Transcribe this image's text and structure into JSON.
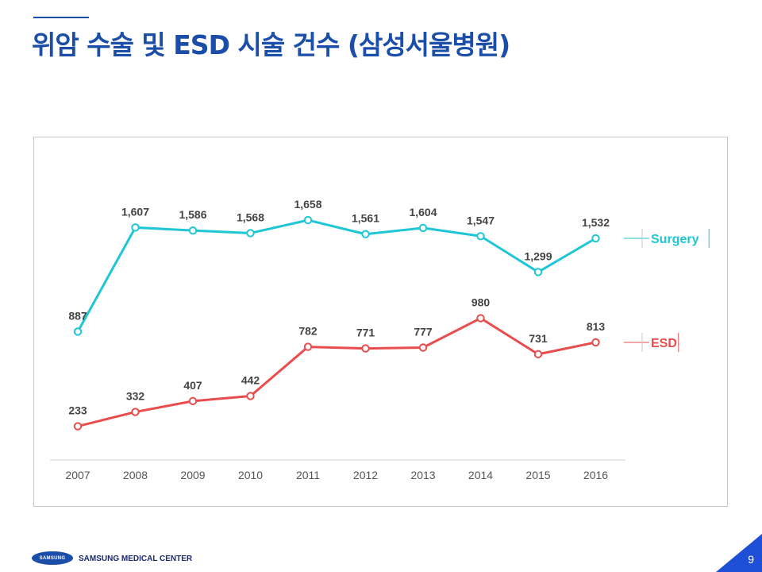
{
  "header": {
    "title": "위암 수술 및 ESD 시술 건수 (삼성서울병원)"
  },
  "footer": {
    "logo_text": "SAMSUNG",
    "org_name": "SAMSUNG MEDICAL CENTER",
    "page_number": "9"
  },
  "chart_data": {
    "type": "line",
    "title": "",
    "xlabel": "",
    "ylabel": "",
    "x": [
      "2007",
      "2008",
      "2009",
      "2010",
      "2011",
      "2012",
      "2013",
      "2014",
      "2015",
      "2016"
    ],
    "ylim": [
      0,
      1900
    ],
    "grid": false,
    "legend_position": "right",
    "series": [
      {
        "name": "Surgery",
        "color": "#1ec6d6",
        "values": [
          887,
          1607,
          1586,
          1568,
          1658,
          1561,
          1604,
          1547,
          1299,
          1532
        ],
        "labels": [
          "887",
          "1,607",
          "1,586",
          "1,568",
          "1,658",
          "1,561",
          "1,604",
          "1,547",
          "1,299",
          "1,532"
        ]
      },
      {
        "name": "ESD",
        "color": "#e84c4c",
        "values": [
          233,
          332,
          407,
          442,
          782,
          771,
          777,
          980,
          731,
          813
        ],
        "labels": [
          "233",
          "332",
          "407",
          "442",
          "782",
          "771",
          "777",
          "980",
          "731",
          "813"
        ]
      }
    ]
  }
}
